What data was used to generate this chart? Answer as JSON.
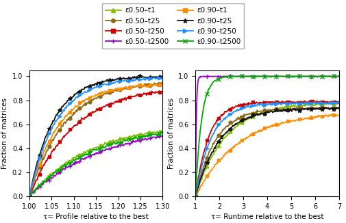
{
  "legend_entries": [
    {
      "label": "ε0.50–t1",
      "color": "#7fbf00",
      "marker": "^",
      "ms": 3.5,
      "lw": 1.3
    },
    {
      "label": "ε0.50–t25",
      "color": "#8B6914",
      "marker": "o",
      "ms": 3.5,
      "lw": 1.3
    },
    {
      "label": "ε0.50–t250",
      "color": "#cc0000",
      "marker": "s",
      "ms": 3.5,
      "lw": 1.3
    },
    {
      "label": "ε0.50–t2500",
      "color": "#9900cc",
      "marker": "+",
      "ms": 4.0,
      "lw": 1.3
    },
    {
      "label": "ε0.90–t1",
      "color": "#ff8c00",
      "marker": "s",
      "ms": 3.5,
      "lw": 1.3
    },
    {
      "label": "ε0.90–t25",
      "color": "#111111",
      "marker": "*",
      "ms": 4.0,
      "lw": 1.3
    },
    {
      "label": "ε0.90–t250",
      "color": "#1e90ff",
      "marker": ">",
      "ms": 3.5,
      "lw": 1.3
    },
    {
      "label": "ε0.90–t2500",
      "color": "#00aa00",
      "marker": "x",
      "ms": 4.0,
      "lw": 1.3
    }
  ],
  "xlabel_left": "τ= Profile relative to the best",
  "xlabel_right": "τ= Runtime relative to the best",
  "ylabel": "Fraction of matrices",
  "xlim_left": [
    1.0,
    1.3
  ],
  "xlim_right": [
    1.0,
    7.0
  ],
  "ylim": [
    0.0,
    1.05
  ],
  "xticks_left": [
    1.0,
    1.05,
    1.1,
    1.15,
    1.2,
    1.25,
    1.3
  ],
  "xticks_right": [
    1,
    2,
    3,
    4,
    5,
    6,
    7
  ],
  "yticks": [
    0.0,
    0.2,
    0.4,
    0.6,
    0.8,
    1.0
  ]
}
